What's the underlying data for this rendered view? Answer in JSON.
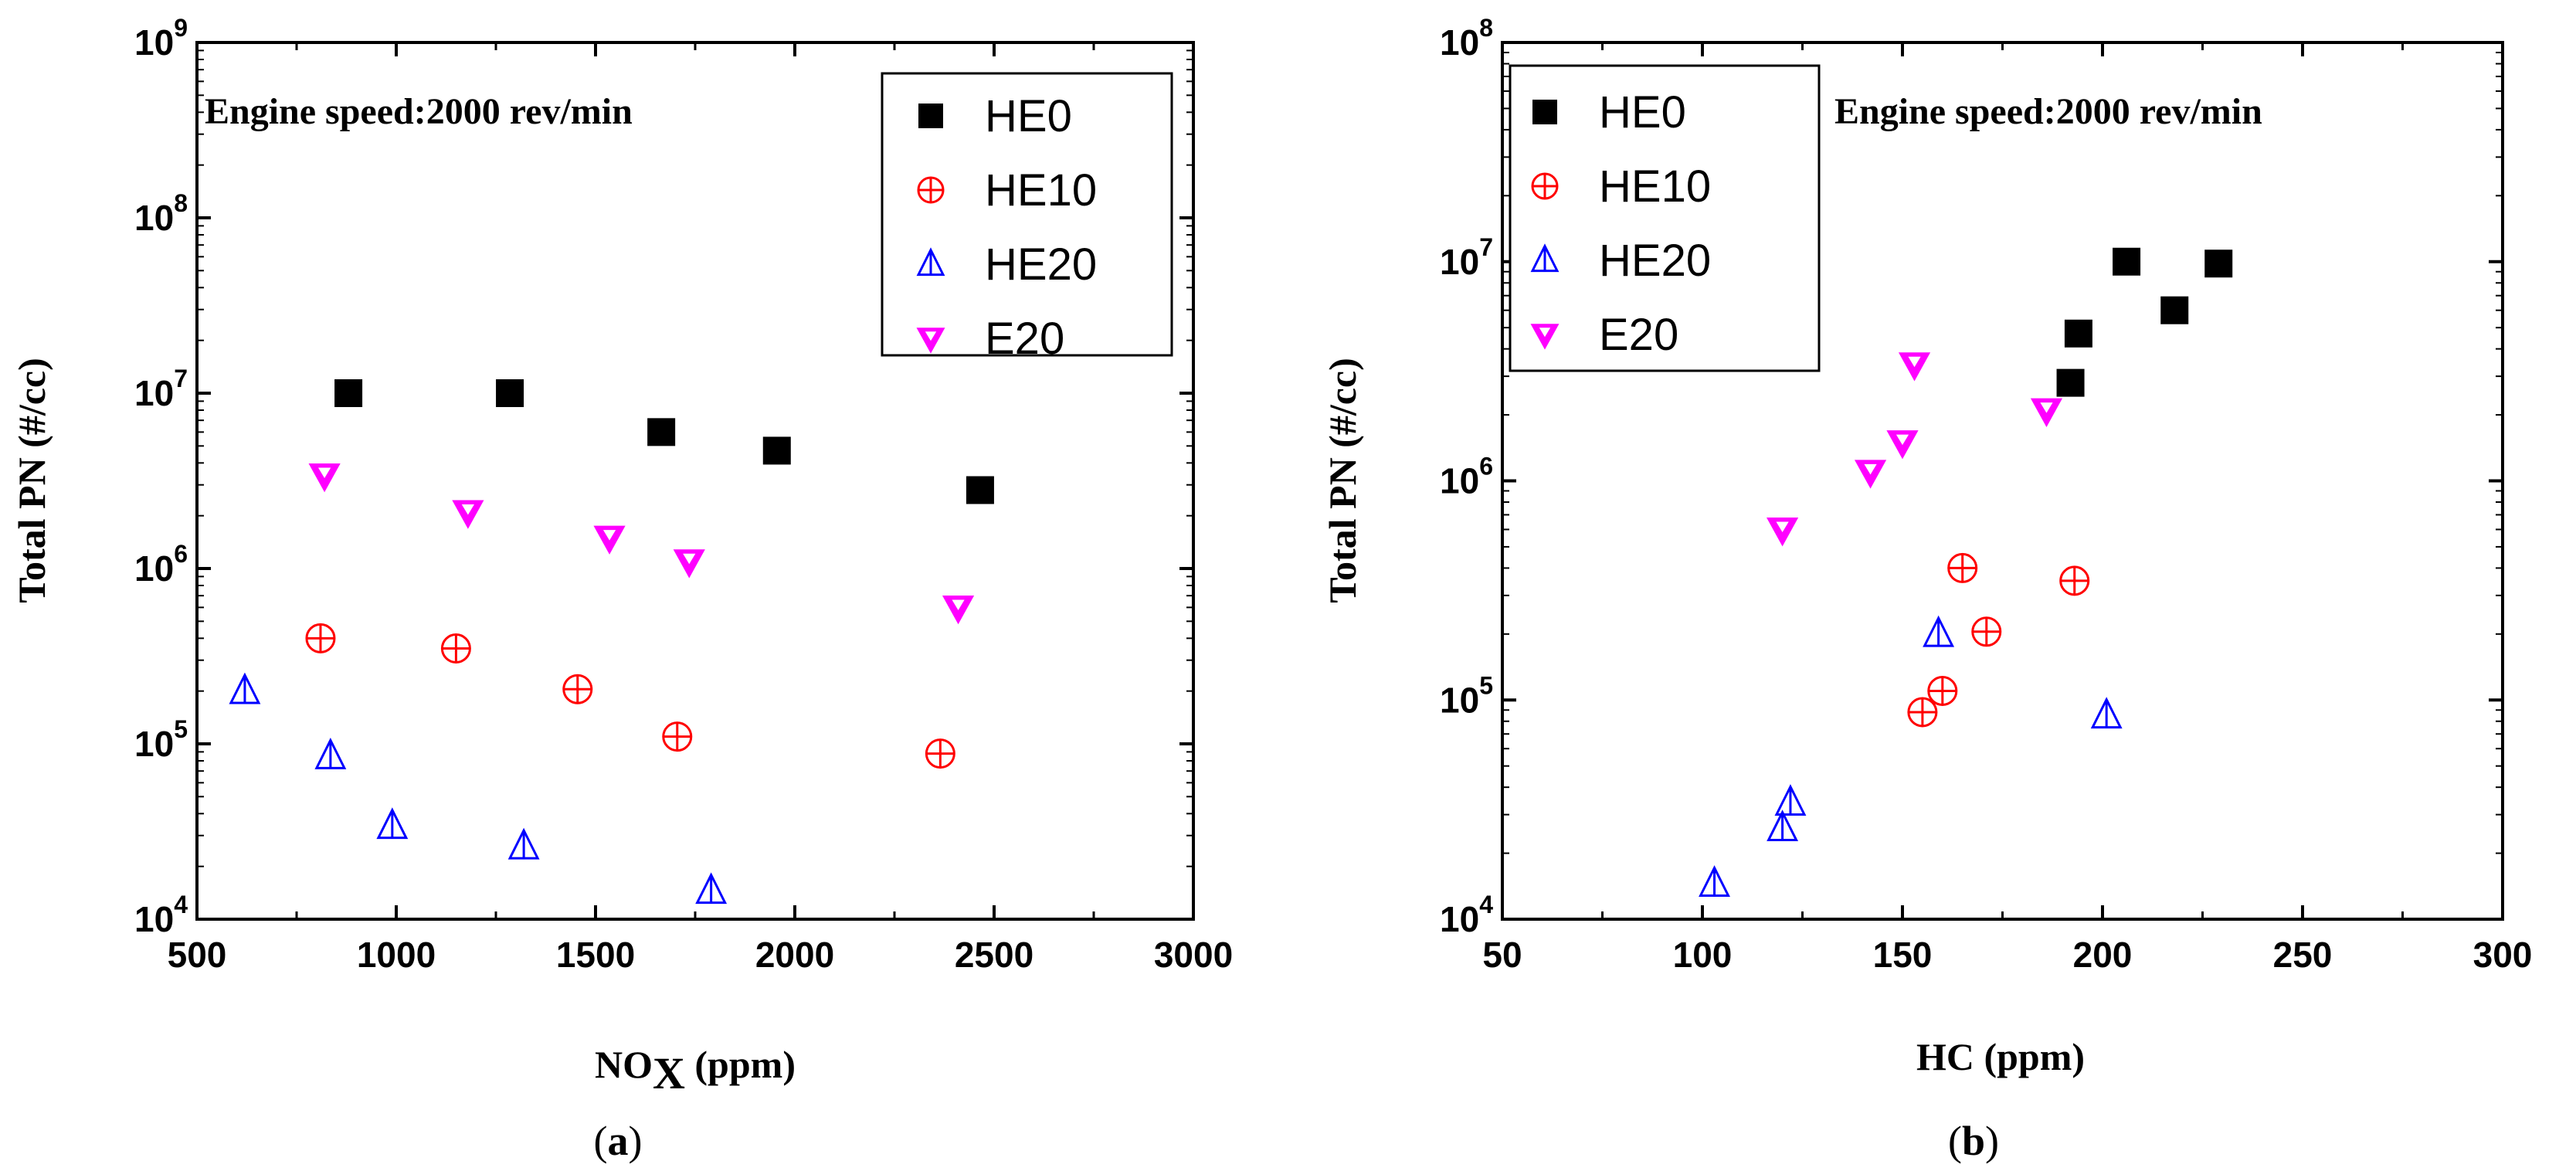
{
  "chart_data": [
    {
      "type": "scatter",
      "caption_open": "(",
      "caption_letter": "a",
      "caption_close": ")",
      "xlabel": "NO",
      "xlabel_sub": "X",
      "xlabel_unit": " (ppm)",
      "ylabel": "Total PN  (#/cc)",
      "annotation": "Engine speed:2000 rev/min",
      "xlim": [
        500,
        3000
      ],
      "xticks": [
        "500",
        "1000",
        "1500",
        "2000",
        "2500",
        "3000"
      ],
      "yscale": "log",
      "ylim_exp": [
        4,
        9
      ],
      "yticks": [
        {
          "base": "10",
          "exp": "4"
        },
        {
          "base": "10",
          "exp": "5"
        },
        {
          "base": "10",
          "exp": "6"
        },
        {
          "base": "10",
          "exp": "7"
        },
        {
          "base": "10",
          "exp": "8"
        },
        {
          "base": "10",
          "exp": "9"
        }
      ],
      "legend_position": "top-right",
      "series": [
        {
          "name": "HE0",
          "marker": "square",
          "color": "#000000",
          "points": [
            [
              880,
              10000000
            ],
            [
              1285,
              10000000
            ],
            [
              1665,
              6000000
            ],
            [
              1955,
              4700000
            ],
            [
              2465,
              2800000
            ]
          ]
        },
        {
          "name": "HE10",
          "marker": "circle-plus",
          "color": "#ff0000",
          "points": [
            [
              810,
              400000
            ],
            [
              1150,
              350000
            ],
            [
              1455,
              205000
            ],
            [
              1705,
              110000
            ],
            [
              2365,
              88000
            ]
          ]
        },
        {
          "name": "HE20",
          "marker": "triangle-up",
          "color": "#0000ff",
          "points": [
            [
              620,
              200000
            ],
            [
              835,
              85000
            ],
            [
              990,
              34000
            ],
            [
              1320,
              26000
            ],
            [
              1790,
              14500
            ]
          ]
        },
        {
          "name": "E20",
          "marker": "triangle-down",
          "color": "#ff00ff",
          "points": [
            [
              820,
              3400000
            ],
            [
              1180,
              2100000
            ],
            [
              1535,
              1500000
            ],
            [
              1735,
              1100000
            ],
            [
              2410,
              600000
            ]
          ]
        }
      ]
    },
    {
      "type": "scatter",
      "caption_open": "(",
      "caption_letter": "b",
      "caption_close": ")",
      "xlabel": "HC (ppm)",
      "ylabel": "Total PN  (#/cc)",
      "annotation": "Engine speed:2000 rev/min",
      "xlim": [
        50,
        300
      ],
      "xticks": [
        "50",
        "100",
        "150",
        "200",
        "250",
        "300"
      ],
      "yscale": "log",
      "ylim_exp": [
        4,
        8
      ],
      "yticks": [
        {
          "base": "10",
          "exp": "4"
        },
        {
          "base": "10",
          "exp": "5"
        },
        {
          "base": "10",
          "exp": "6"
        },
        {
          "base": "10",
          "exp": "7"
        },
        {
          "base": "10",
          "exp": "8"
        }
      ],
      "legend_position": "top-left",
      "series": [
        {
          "name": "HE0",
          "marker": "square",
          "color": "#000000",
          "points": [
            [
              192,
              2800000
            ],
            [
              194,
              4700000
            ],
            [
              206,
              10000000
            ],
            [
              218,
              6000000
            ],
            [
              229,
              9800000
            ]
          ]
        },
        {
          "name": "HE10",
          "marker": "circle-plus",
          "color": "#ff0000",
          "points": [
            [
              165,
              400000
            ],
            [
              193,
              350000
            ],
            [
              171,
              205000
            ],
            [
              160,
              110000
            ],
            [
              155,
              88000
            ]
          ]
        },
        {
          "name": "HE20",
          "marker": "triangle-up",
          "color": "#0000ff",
          "points": [
            [
              159,
              200000
            ],
            [
              201,
              85000
            ],
            [
              122,
              34000
            ],
            [
              120,
              26000
            ],
            [
              103,
              14500
            ]
          ]
        },
        {
          "name": "E20",
          "marker": "triangle-down",
          "color": "#ff00ff",
          "points": [
            [
              153,
              3400000
            ],
            [
              186,
              2100000
            ],
            [
              150,
              1500000
            ],
            [
              142,
              1100000
            ],
            [
              120,
              600000
            ]
          ]
        }
      ]
    }
  ]
}
